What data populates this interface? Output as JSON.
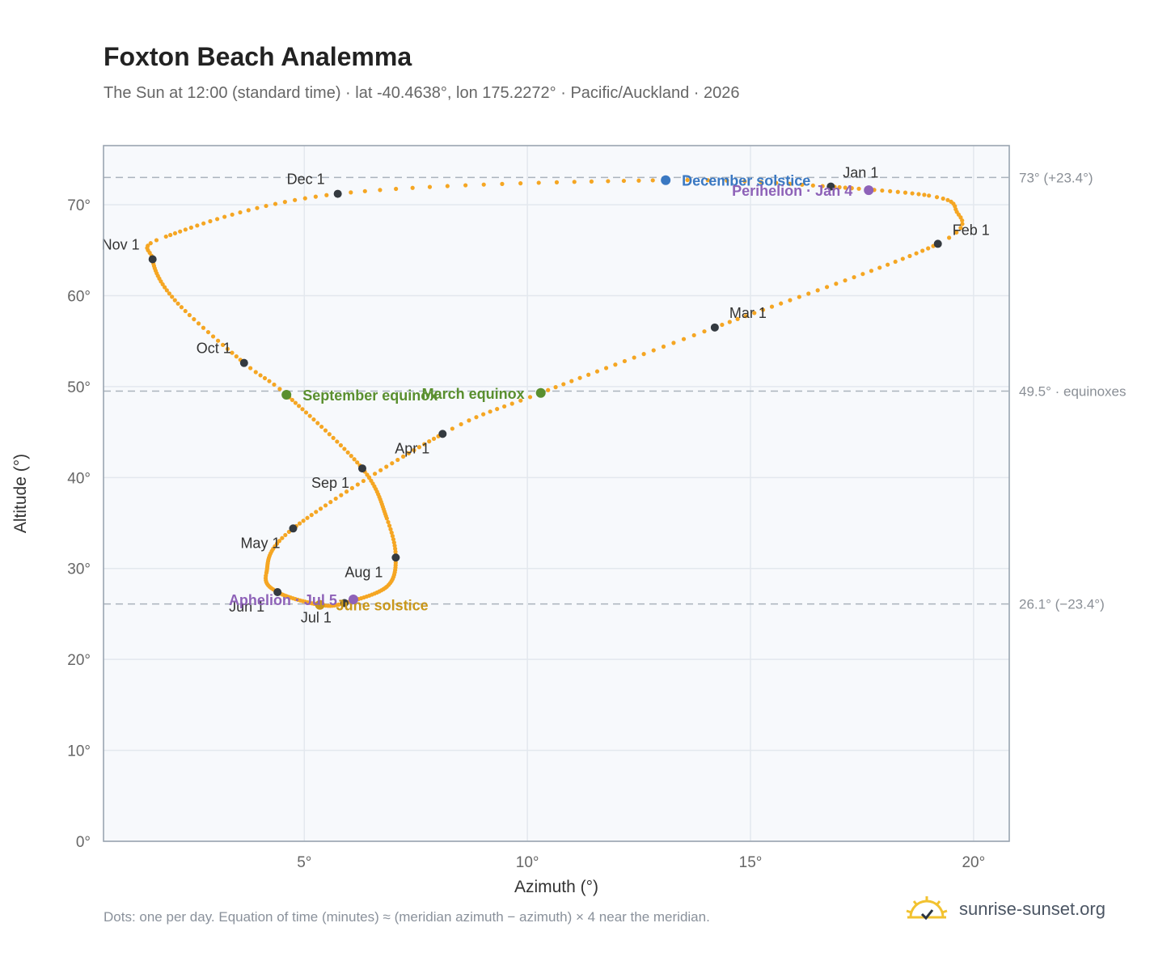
{
  "header": {
    "title": "Foxton Beach Analemma",
    "subtitle": "The Sun at 12:00 (standard time) · lat -40.4638°, lon 175.2272° · Pacific/Auckland · 2026"
  },
  "footer": {
    "note": "Dots: one per day. Equation of time (minutes) ≈ (meridian azimuth − azimuth) × 4 near the meridian.",
    "brand": "sunrise-sunset.org",
    "brand_icon": "sun-logo-icon"
  },
  "colors": {
    "curve": "#f5a623",
    "month_dot": "#343a40",
    "december_solstice": "#3a78c2",
    "june_solstice": "#c9971a",
    "equinox": "#5a8f2f",
    "apsis": "#8e62b8",
    "plot_bg": "#f7f9fc",
    "grid": "#e3e8ee",
    "reference_line": "#aab3bd"
  },
  "chart_data": {
    "type": "scatter",
    "title": "Foxton Beach Analemma",
    "xlabel": "Azimuth (°)",
    "ylabel": "Altitude (°)",
    "xlim": [
      0.5,
      20.8
    ],
    "ylim": [
      0,
      76.5
    ],
    "x_ticks": [
      5,
      10,
      15,
      20
    ],
    "x_tick_labels": [
      "5°",
      "10°",
      "15°",
      "20°"
    ],
    "y_ticks": [
      0,
      10,
      20,
      30,
      40,
      50,
      60,
      70
    ],
    "y_tick_labels": [
      "0°",
      "10°",
      "20°",
      "30°",
      "40°",
      "50°",
      "60°",
      "70°"
    ],
    "grid": true,
    "series_note": "one dot per day of 2026",
    "daily_path_anchors": [
      {
        "day": 1,
        "x": 16.8,
        "y": 72.0
      },
      {
        "day": 16,
        "x": 19.0,
        "y": 71.0
      },
      {
        "day": 23,
        "x": 19.6,
        "y": 69.5
      },
      {
        "day": 32,
        "x": 19.2,
        "y": 65.7
      },
      {
        "day": 60,
        "x": 14.2,
        "y": 56.5
      },
      {
        "day": 79,
        "x": 10.3,
        "y": 49.3
      },
      {
        "day": 91,
        "x": 8.1,
        "y": 44.8
      },
      {
        "day": 121,
        "x": 4.75,
        "y": 34.4
      },
      {
        "day": 141,
        "x": 4.15,
        "y": 29.5
      },
      {
        "day": 152,
        "x": 4.4,
        "y": 27.4
      },
      {
        "day": 172,
        "x": 5.35,
        "y": 26.0
      },
      {
        "day": 182,
        "x": 5.9,
        "y": 26.2
      },
      {
        "day": 200,
        "x": 6.85,
        "y": 28.0
      },
      {
        "day": 213,
        "x": 7.05,
        "y": 31.2
      },
      {
        "day": 225,
        "x": 6.85,
        "y": 35.5
      },
      {
        "day": 244,
        "x": 6.3,
        "y": 41.0
      },
      {
        "day": 266,
        "x": 4.6,
        "y": 49.1
      },
      {
        "day": 274,
        "x": 3.65,
        "y": 52.6
      },
      {
        "day": 290,
        "x": 2.1,
        "y": 59.5
      },
      {
        "day": 305,
        "x": 1.6,
        "y": 64.0
      },
      {
        "day": 313,
        "x": 1.9,
        "y": 66.5
      },
      {
        "day": 335,
        "x": 5.75,
        "y": 71.2
      },
      {
        "day": 355,
        "x": 13.1,
        "y": 72.7
      },
      {
        "day": 366,
        "x": 16.8,
        "y": 72.0
      }
    ],
    "months": [
      {
        "label": "Jan 1",
        "x": 16.8,
        "y": 72.0,
        "anchor": "start",
        "dx": 15,
        "dy": -11
      },
      {
        "label": "Feb 1",
        "x": 19.2,
        "y": 65.7,
        "anchor": "start",
        "dx": 18,
        "dy": -11
      },
      {
        "label": "Mar 1",
        "x": 14.2,
        "y": 56.5,
        "anchor": "start",
        "dx": 18,
        "dy": -12
      },
      {
        "label": "Apr 1",
        "x": 8.1,
        "y": 44.8,
        "anchor": "end",
        "dx": -16,
        "dy": 24
      },
      {
        "label": "May 1",
        "x": 4.75,
        "y": 34.4,
        "anchor": "end",
        "dx": -16,
        "dy": 24
      },
      {
        "label": "Jun 1",
        "x": 4.4,
        "y": 27.4,
        "anchor": "end",
        "dx": -16,
        "dy": 24
      },
      {
        "label": "Jul 1",
        "x": 5.9,
        "y": 26.2,
        "anchor": "end",
        "dx": -16,
        "dy": 24
      },
      {
        "label": "Aug 1",
        "x": 7.05,
        "y": 31.2,
        "anchor": "end",
        "dx": -16,
        "dy": 24
      },
      {
        "label": "Sep 1",
        "x": 6.3,
        "y": 41.0,
        "anchor": "end",
        "dx": -16,
        "dy": 24
      },
      {
        "label": "Oct 1",
        "x": 3.65,
        "y": 52.6,
        "anchor": "end",
        "dx": -16,
        "dy": -12
      },
      {
        "label": "Nov 1",
        "x": 1.6,
        "y": 64.0,
        "anchor": "end",
        "dx": -16,
        "dy": -12
      },
      {
        "label": "Dec 1",
        "x": 5.75,
        "y": 71.2,
        "anchor": "end",
        "dx": -16,
        "dy": -12
      }
    ],
    "events": [
      {
        "label": "December solstice",
        "x": 13.1,
        "y": 72.7,
        "color_key": "december_solstice",
        "anchor": "start",
        "dx": 20,
        "dy": 7
      },
      {
        "label": "Perihelion · Jan 4",
        "x": 17.65,
        "y": 71.6,
        "color_key": "apsis",
        "anchor": "end",
        "dx": -20,
        "dy": 7
      },
      {
        "label": "March equinox",
        "x": 10.3,
        "y": 49.3,
        "color_key": "equinox",
        "anchor": "end",
        "dx": -20,
        "dy": 7
      },
      {
        "label": "September equinox",
        "x": 4.6,
        "y": 49.1,
        "color_key": "equinox",
        "anchor": "start",
        "dx": 20,
        "dy": 7
      },
      {
        "label": "June solstice",
        "x": 5.35,
        "y": 26.0,
        "color_key": "june_solstice",
        "anchor": "start",
        "dx": 20,
        "dy": 7
      },
      {
        "label": "Aphelion · Jul 5",
        "x": 6.1,
        "y": 26.6,
        "color_key": "apsis",
        "anchor": "end",
        "dx": -20,
        "dy": 7
      }
    ],
    "reference_lines": [
      {
        "y": 73.0,
        "label": "73° (+23.4°)"
      },
      {
        "y": 49.5,
        "label": "49.5° · equinoxes"
      },
      {
        "y": 26.1,
        "label": "26.1° (−23.4°)"
      }
    ]
  }
}
